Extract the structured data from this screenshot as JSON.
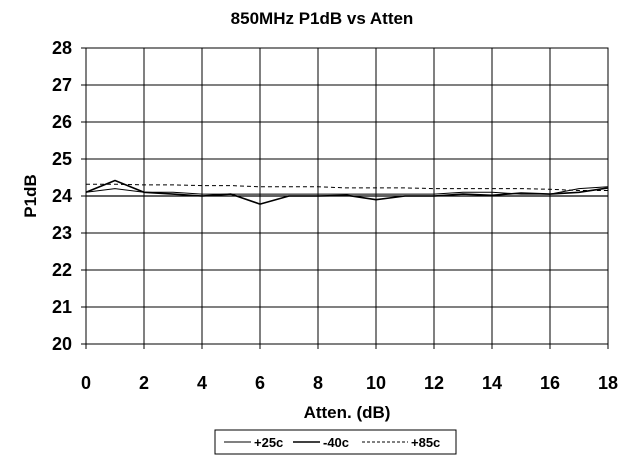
{
  "chart_data": {
    "type": "line",
    "title": "850MHz P1dB vs Atten",
    "xlabel": "Atten. (dB)",
    "ylabel": "P1dB",
    "xlim": [
      0,
      18
    ],
    "ylim": [
      20,
      28
    ],
    "x_ticks": [
      "0",
      "2",
      "4",
      "6",
      "8",
      "10",
      "12",
      "14",
      "16",
      "18"
    ],
    "y_ticks": [
      "20",
      "21",
      "22",
      "23",
      "24",
      "25",
      "26",
      "27",
      "28"
    ],
    "grid": true,
    "legend_position": "bottom",
    "x": [
      0,
      1,
      2,
      3,
      4,
      5,
      6,
      7,
      8,
      9,
      10,
      11,
      12,
      13,
      14,
      15,
      16,
      17,
      18
    ],
    "series": [
      {
        "name": "+25c",
        "color": "#000000",
        "dash": "solid",
        "width": 1,
        "values": [
          24.1,
          24.2,
          24.1,
          24.1,
          24.05,
          24.05,
          24.05,
          24.05,
          24.05,
          24.05,
          24.05,
          24.05,
          24.05,
          24.1,
          24.1,
          24.05,
          24.05,
          24.2,
          24.25
        ]
      },
      {
        "name": "-40c",
        "color": "#000000",
        "dash": "solid",
        "width": 1.6,
        "values": [
          24.1,
          24.42,
          24.1,
          24.05,
          24.0,
          24.05,
          23.78,
          24.0,
          24.0,
          24.02,
          23.9,
          24.0,
          24.0,
          24.05,
          24.02,
          24.08,
          24.05,
          24.1,
          24.22
        ]
      },
      {
        "name": "+85c",
        "color": "#000000",
        "dash": "dashed",
        "width": 1,
        "values": [
          24.32,
          24.32,
          24.3,
          24.3,
          24.28,
          24.28,
          24.25,
          24.25,
          24.25,
          24.22,
          24.22,
          24.22,
          24.2,
          24.2,
          24.2,
          24.2,
          24.18,
          24.15,
          24.15
        ]
      }
    ]
  }
}
